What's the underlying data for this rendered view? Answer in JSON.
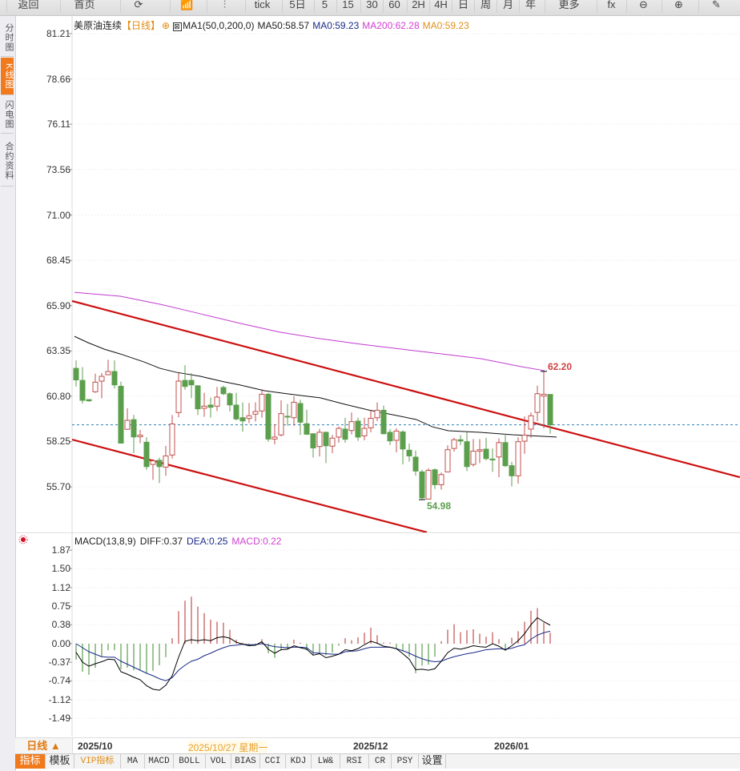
{
  "toolbar": {
    "items": [
      "返回",
      "首页",
      "⟳",
      "📶",
      "⫶",
      "tick",
      "5日",
      "5",
      "15",
      "30",
      "60",
      "2H",
      "4H",
      "日",
      "周",
      "月",
      "年",
      "更多",
      "fx",
      "⊖",
      "⊕",
      "✎"
    ]
  },
  "side_tabs": [
    "分时图",
    "K线图",
    "闪电图",
    "合约资料"
  ],
  "header": {
    "symbol": "美原油连续",
    "period": "【日线】",
    "indicator": "MA1(50,0,200,0)",
    "ma50": "MA50:58.57",
    "ma0a": "MA0:59.23",
    "ma200": "MA200:62.28",
    "ma0b": "MA0:59.23"
  },
  "macd_header": {
    "name": "MACD(13,8,9)",
    "diff": "DIFF:0.37",
    "dea": "DEA:0.25",
    "macd": "MACD:0.22"
  },
  "date_axis": {
    "period_button": "日线 ▲",
    "labels": [
      "2025/10",
      "2025/10/27 星期一",
      "2025/12",
      "2026/01"
    ]
  },
  "bottom_tabs": [
    "指标",
    "模板",
    "VIP指标",
    "MA",
    "MACD",
    "BOLL",
    "VOL",
    "BIAS",
    "CCI",
    "KDJ",
    "LW&",
    "RSI",
    "CR",
    "PSY",
    "设置"
  ],
  "colors": {
    "up": "#c0504d",
    "down": "#5b9e4c",
    "ma50": "#111111",
    "ma200": "#c23ad0",
    "trend": "#cc1010",
    "last": "#2a7fb8"
  },
  "chart_data": [
    {
      "type": "candlestick",
      "title": "美原油连续 日线",
      "ylim": [
        53.0,
        81.21
      ],
      "y_ticks": [
        "81.21",
        "78.66",
        "76.11",
        "73.56",
        "71.00",
        "68.45",
        "65.90",
        "63.35",
        "60.80",
        "58.25",
        "55.70"
      ],
      "last_price": 59.19,
      "annotations": [
        {
          "label": "62.20",
          "index": 73,
          "value": 62.2
        },
        {
          "label": "54.98",
          "index": 54,
          "value": 54.98
        }
      ],
      "ohlc": [
        [
          62.37,
          62.82,
          61.35,
          61.72
        ],
        [
          61.69,
          62.44,
          60.39,
          60.57
        ],
        [
          60.61,
          60.64,
          60.49,
          60.54
        ],
        [
          61.05,
          62.07,
          60.99,
          61.59
        ],
        [
          61.65,
          62.1,
          60.69,
          61.92
        ],
        [
          62.01,
          62.85,
          61.99,
          62.19
        ],
        [
          62.19,
          62.82,
          61.24,
          61.44
        ],
        [
          61.36,
          61.62,
          58.16,
          58.16
        ],
        [
          58.94,
          60.12,
          58.91,
          59.44
        ],
        [
          59.48,
          59.74,
          57.59,
          58.51
        ],
        [
          58.52,
          58.91,
          58.16,
          58.61
        ],
        [
          58.21,
          58.49,
          56.66,
          56.84
        ],
        [
          56.96,
          57.26,
          56.09,
          57.16
        ],
        [
          57.19,
          57.34,
          55.91,
          56.84
        ],
        [
          56.81,
          58.01,
          56.32,
          57.44
        ],
        [
          57.49,
          59.74,
          57.29,
          59.24
        ],
        [
          59.88,
          62.1,
          59.61,
          61.65
        ],
        [
          61.69,
          62.55,
          61.17,
          61.35
        ],
        [
          61.69,
          62.1,
          60.69,
          61.44
        ],
        [
          61.39,
          61.39,
          59.74,
          60.09
        ],
        [
          60.12,
          60.99,
          59.64,
          60.24
        ],
        [
          60.3,
          60.72,
          59.59,
          60.18
        ],
        [
          60.24,
          61.32,
          59.97,
          60.75
        ],
        [
          61.29,
          61.39,
          60.87,
          60.94
        ],
        [
          60.94,
          61.02,
          59.94,
          60.31
        ],
        [
          60.3,
          60.99,
          59.44,
          59.52
        ],
        [
          59.59,
          60.45,
          58.8,
          59.41
        ],
        [
          59.55,
          60.42,
          59.29,
          59.7
        ],
        [
          59.79,
          60.45,
          59.37,
          59.94
        ],
        [
          59.97,
          61.2,
          59.59,
          60.91
        ],
        [
          60.91,
          60.99,
          58.24,
          58.39
        ],
        [
          58.39,
          59.22,
          58.09,
          58.5
        ],
        [
          58.62,
          60.57,
          58.54,
          59.82
        ],
        [
          59.67,
          60.37,
          59.14,
          59.64
        ],
        [
          59.59,
          60.79,
          59.14,
          60.46
        ],
        [
          60.39,
          60.6,
          58.62,
          59.34
        ],
        [
          59.25,
          60.04,
          58.62,
          58.66
        ],
        [
          58.69,
          58.69,
          57.34,
          57.89
        ],
        [
          57.97,
          58.96,
          57.41,
          58.77
        ],
        [
          58.77,
          58.8,
          57.04,
          58.01
        ],
        [
          57.99,
          58.62,
          57.59,
          58.44
        ],
        [
          58.5,
          59.1,
          58.19,
          58.99
        ],
        [
          58.95,
          59.59,
          58.19,
          58.38
        ],
        [
          58.87,
          59.89,
          58.65,
          59.37
        ],
        [
          59.4,
          59.59,
          58.29,
          58.5
        ],
        [
          58.57,
          59.59,
          58.32,
          58.99
        ],
        [
          59.02,
          60.0,
          58.77,
          59.56
        ],
        [
          59.59,
          60.45,
          59.4,
          60.01
        ],
        [
          60.01,
          60.27,
          58.65,
          58.69
        ],
        [
          58.77,
          58.95,
          58.05,
          58.29
        ],
        [
          58.32,
          59.0,
          57.64,
          58.84
        ],
        [
          58.79,
          58.88,
          56.96,
          57.83
        ],
        [
          57.76,
          58.13,
          57.11,
          57.44
        ],
        [
          57.37,
          57.74,
          56.33,
          56.59
        ],
        [
          56.54,
          56.66,
          54.98,
          55.08
        ],
        [
          55.01,
          56.74,
          54.98,
          56.63
        ],
        [
          56.66,
          56.74,
          55.58,
          55.82
        ],
        [
          55.82,
          56.51,
          55.54,
          56.39
        ],
        [
          56.54,
          58.04,
          56.54,
          57.79
        ],
        [
          57.86,
          58.46,
          57.68,
          58.35
        ],
        [
          58.35,
          58.61,
          58.04,
          58.28
        ],
        [
          58.24,
          58.79,
          56.59,
          56.84
        ],
        [
          56.96,
          58.39,
          56.84,
          57.71
        ],
        [
          57.71,
          58.39,
          57.04,
          57.79
        ],
        [
          57.82,
          58.46,
          57.19,
          57.29
        ],
        [
          57.26,
          57.86,
          56.54,
          57.23
        ],
        [
          57.38,
          58.43,
          56.24,
          58.19
        ],
        [
          58.19,
          58.69,
          56.81,
          56.89
        ],
        [
          56.89,
          57.11,
          55.73,
          56.32
        ],
        [
          56.32,
          58.49,
          55.88,
          58.24
        ],
        [
          58.27,
          59.67,
          57.56,
          58.61
        ],
        [
          58.95,
          59.89,
          58.46,
          59.7
        ],
        [
          59.89,
          61.39,
          59.4,
          60.94
        ],
        [
          60.81,
          62.2,
          58.99,
          60.91
        ],
        [
          60.9,
          60.9,
          58.69,
          59.19
        ]
      ],
      "ma50": [
        [
          -0.25,
          64.17
        ],
        [
          1.9,
          63.81
        ],
        [
          4.4,
          63.45
        ],
        [
          6.9,
          63.18
        ],
        [
          10.6,
          62.73
        ],
        [
          13.1,
          62.37
        ],
        [
          15.6,
          62.15
        ],
        [
          19.4,
          61.92
        ],
        [
          23.1,
          61.61
        ],
        [
          25.6,
          61.43
        ],
        [
          29.4,
          61.11
        ],
        [
          33.1,
          60.93
        ],
        [
          38.1,
          60.71
        ],
        [
          41.9,
          60.35
        ],
        [
          45.6,
          60.03
        ],
        [
          49.4,
          59.76
        ],
        [
          53.1,
          59.49
        ],
        [
          55.6,
          59.08
        ],
        [
          58.1,
          58.86
        ],
        [
          63.1,
          58.77
        ],
        [
          68.1,
          58.63
        ],
        [
          75,
          58.5
        ]
      ],
      "ma200": [
        [
          -0.25,
          66.65
        ],
        [
          6.9,
          66.43
        ],
        [
          13.1,
          65.98
        ],
        [
          19.4,
          65.44
        ],
        [
          25.6,
          64.9
        ],
        [
          31.9,
          64.4
        ],
        [
          38.1,
          64.04
        ],
        [
          44.4,
          63.73
        ],
        [
          50.6,
          63.46
        ],
        [
          56.9,
          63.19
        ],
        [
          63.1,
          62.92
        ],
        [
          69.4,
          62.47
        ],
        [
          73.1,
          62.24
        ]
      ],
      "trendlines": [
        {
          "name": "upper",
          "from": [
            -0.625,
            66.16
          ],
          "to": [
            103.6,
            56.24
          ]
        },
        {
          "name": "lower",
          "from": [
            -0.625,
            58.36
          ],
          "to": [
            54.75,
            53.14
          ]
        }
      ]
    },
    {
      "type": "bar+line",
      "title": "MACD(13,8,9)",
      "ylim": [
        -1.6,
        1.95
      ],
      "y_ticks": [
        "1.87",
        "1.50",
        "1.12",
        "0.75",
        "0.38",
        "0.00",
        "-0.37",
        "-0.74",
        "-1.12",
        "-1.49"
      ],
      "diff": [
        -0.17,
        -0.37,
        -0.45,
        -0.4,
        -0.36,
        -0.31,
        -0.32,
        -0.56,
        -0.61,
        -0.67,
        -0.72,
        -0.84,
        -0.91,
        -0.93,
        -0.83,
        -0.64,
        -0.27,
        0.05,
        0.08,
        0.06,
        0.08,
        0.06,
        0.12,
        0.14,
        0.11,
        0.03,
        -0.01,
        -0.04,
        -0.03,
        0.04,
        -0.11,
        -0.19,
        -0.12,
        -0.11,
        -0.04,
        -0.08,
        -0.11,
        -0.23,
        -0.2,
        -0.28,
        -0.25,
        -0.21,
        -0.12,
        -0.14,
        -0.1,
        -0.02,
        0.05,
        0.01,
        -0.05,
        -0.07,
        -0.1,
        -0.2,
        -0.31,
        -0.52,
        -0.51,
        -0.53,
        -0.5,
        -0.35,
        -0.18,
        -0.09,
        -0.11,
        -0.08,
        -0.04,
        -0.06,
        -0.07,
        0.0,
        -0.05,
        -0.13,
        -0.04,
        0.06,
        0.2,
        0.38,
        0.52,
        0.44,
        0.37
      ],
      "dea": [
        0.0,
        -0.08,
        -0.16,
        -0.21,
        -0.26,
        -0.27,
        -0.27,
        -0.35,
        -0.41,
        -0.47,
        -0.53,
        -0.59,
        -0.64,
        -0.7,
        -0.74,
        -0.68,
        -0.53,
        -0.43,
        -0.35,
        -0.31,
        -0.24,
        -0.19,
        -0.13,
        -0.08,
        -0.04,
        -0.03,
        -0.01,
        -0.02,
        -0.02,
        0.0,
        -0.03,
        -0.06,
        -0.07,
        -0.08,
        -0.07,
        -0.07,
        -0.08,
        -0.18,
        -0.19,
        -0.2,
        -0.21,
        -0.21,
        -0.16,
        -0.15,
        -0.14,
        -0.1,
        -0.07,
        -0.07,
        -0.07,
        -0.07,
        -0.1,
        -0.14,
        -0.19,
        -0.25,
        -0.3,
        -0.34,
        -0.36,
        -0.35,
        -0.3,
        -0.26,
        -0.23,
        -0.2,
        -0.18,
        -0.15,
        -0.12,
        -0.11,
        -0.1,
        -0.11,
        -0.09,
        -0.05,
        -0.02,
        0.09,
        0.17,
        0.22,
        0.25
      ],
      "macd": [
        -0.32,
        -0.56,
        -0.62,
        -0.48,
        -0.27,
        -0.13,
        -0.13,
        -0.51,
        -0.48,
        -0.53,
        -0.53,
        -0.59,
        -0.54,
        -0.43,
        -0.27,
        0.11,
        0.65,
        0.86,
        0.94,
        0.74,
        0.61,
        0.48,
        0.44,
        0.42,
        0.28,
        0.08,
        0.02,
        -0.03,
        -0.02,
        0.09,
        -0.19,
        -0.28,
        -0.13,
        -0.11,
        0.08,
        0.02,
        -0.13,
        -0.23,
        -0.18,
        -0.23,
        -0.18,
        -0.04,
        0.11,
        0.07,
        0.13,
        0.22,
        0.32,
        0.17,
        0.02,
        0.02,
        -0.1,
        -0.15,
        -0.26,
        -0.59,
        -0.44,
        -0.42,
        -0.26,
        0.05,
        0.28,
        0.39,
        0.23,
        0.27,
        0.29,
        0.2,
        0.14,
        0.23,
        0.09,
        -0.1,
        0.12,
        0.25,
        0.44,
        0.66,
        0.71,
        0.42,
        0.22
      ]
    }
  ]
}
